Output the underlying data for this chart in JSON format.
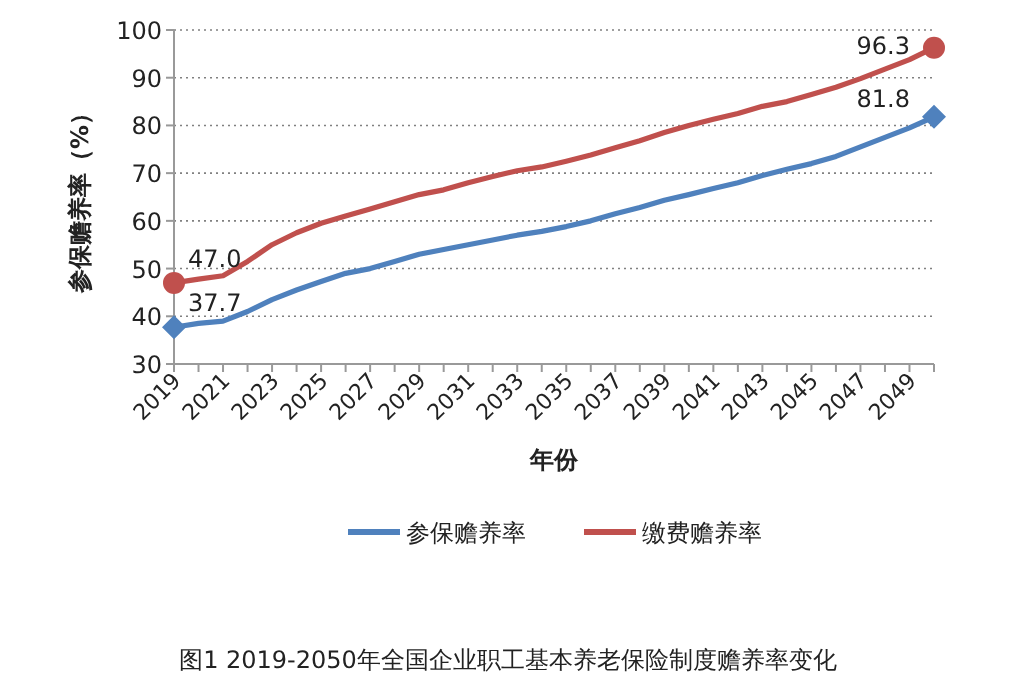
{
  "chart_data": {
    "type": "line",
    "title": "图1  2019-2050年全国企业职工基本养老保险制度赡养率变化",
    "xlabel": "年份",
    "ylabel": "参保赡养率（%）",
    "x": [
      2019,
      2020,
      2021,
      2022,
      2023,
      2024,
      2025,
      2026,
      2027,
      2028,
      2029,
      2030,
      2031,
      2032,
      2033,
      2034,
      2035,
      2036,
      2037,
      2038,
      2039,
      2040,
      2041,
      2042,
      2043,
      2044,
      2045,
      2046,
      2047,
      2048,
      2049,
      2050
    ],
    "series": [
      {
        "name": "参保赡养率",
        "color": "#4f81bd",
        "values": [
          37.7,
          38.5,
          39,
          41,
          43.5,
          45.5,
          47.3,
          49,
          50,
          51.5,
          53,
          54,
          55,
          56,
          57,
          57.8,
          58.8,
          60,
          61.5,
          62.8,
          64.3,
          65.5,
          66.8,
          68,
          69.5,
          70.8,
          72,
          73.5,
          75.5,
          77.5,
          79.5,
          81.8
        ],
        "value_labels": [
          "37.7",
          null,
          null,
          null,
          null,
          null,
          null,
          null,
          null,
          null,
          null,
          null,
          null,
          null,
          null,
          null,
          null,
          null,
          null,
          null,
          null,
          null,
          null,
          null,
          null,
          null,
          null,
          null,
          null,
          null,
          null,
          "81.8"
        ]
      },
      {
        "name": "缴费赡养率",
        "color": "#c0504d",
        "values": [
          47.0,
          47.8,
          48.5,
          51.5,
          55,
          57.5,
          59.5,
          61,
          62.5,
          64,
          65.5,
          66.5,
          68,
          69.3,
          70.5,
          71.3,
          72.5,
          73.8,
          75.3,
          76.8,
          78.5,
          80,
          81.3,
          82.5,
          84,
          85,
          86.5,
          88,
          89.8,
          91.8,
          93.8,
          96.3
        ],
        "value_labels": [
          "47.0",
          null,
          null,
          null,
          null,
          null,
          null,
          null,
          null,
          null,
          null,
          null,
          null,
          null,
          null,
          null,
          null,
          null,
          null,
          null,
          null,
          null,
          null,
          null,
          null,
          null,
          null,
          null,
          null,
          null,
          null,
          "96.3"
        ]
      },
      {
        "type": "scatter",
        "color": "#4f81bd",
        "marker": "diamond",
        "values": [
          37.7,
          null,
          null,
          null,
          null,
          null,
          null,
          null,
          null,
          null,
          null,
          null,
          null,
          null,
          null,
          null,
          null,
          null,
          null,
          null,
          null,
          null,
          null,
          null,
          null,
          null,
          null,
          null,
          null,
          null,
          null,
          81.8
        ]
      },
      {
        "type": "scatter",
        "color": "#c0504d",
        "marker": "circle",
        "values": [
          47.0,
          null,
          null,
          null,
          null,
          null,
          null,
          null,
          null,
          null,
          null,
          null,
          null,
          null,
          null,
          null,
          null,
          null,
          null,
          null,
          null,
          null,
          null,
          null,
          null,
          null,
          null,
          null,
          null,
          null,
          null,
          96.3
        ]
      }
    ],
    "xlim": [
      2019,
      2050
    ],
    "xticks": [
      2019,
      {
        "value": 2020,
        "label": null
      },
      2021,
      {
        "value": 2022,
        "label": null
      },
      2023,
      {
        "value": 2024,
        "label": null
      },
      2025,
      {
        "value": 2026,
        "label": null
      },
      2027,
      {
        "value": 2028,
        "label": null
      },
      2029,
      {
        "value": 2030,
        "label": null
      },
      2031,
      {
        "value": 2032,
        "label": null
      },
      2033,
      {
        "value": 2034,
        "label": null
      },
      2035,
      {
        "value": 2036,
        "label": null
      },
      2037,
      {
        "value": 2038,
        "label": null
      },
      2039,
      {
        "value": 2040,
        "label": null
      },
      2041,
      {
        "value": 2042,
        "label": null
      },
      2043,
      {
        "value": 2044,
        "label": null
      },
      2045,
      {
        "value": 2046,
        "label": null
      },
      2047,
      {
        "value": 2048,
        "label": null
      },
      2049,
      {
        "value": 2050,
        "label": null
      }
    ],
    "ylim": [
      30,
      100
    ],
    "yticks": [
      30,
      40,
      50,
      60,
      70,
      80,
      90,
      100
    ],
    "grid": "y",
    "legend": "bottom",
    "line_style": "solid"
  }
}
